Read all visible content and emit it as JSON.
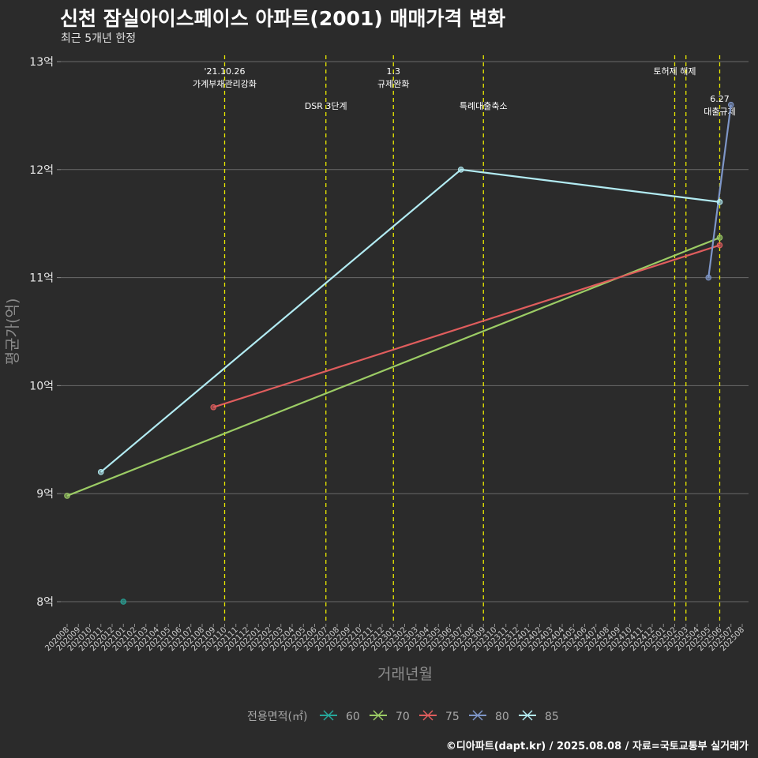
{
  "title": "신천 잠실아이스페이스 아파트(2001) 매매가격 변화",
  "subtitle": "최근 5개년 한정",
  "caption": "©디아파트(dapt.kr) / 2025.08.08 / 자료=국토교통부 실거래가",
  "chart_data": {
    "type": "line",
    "xlabel": "거래년월",
    "ylabel": "평균가(억)",
    "ylim": [
      7.8,
      13.1
    ],
    "yticks": [
      8,
      9,
      10,
      11,
      12,
      13
    ],
    "ytick_labels": [
      "8억",
      "9억",
      "10억",
      "11억",
      "12억",
      "13억"
    ],
    "grid": true,
    "months": [
      "202008",
      "202009",
      "202010",
      "202011",
      "202012",
      "202101",
      "202102",
      "202103",
      "202104",
      "202105",
      "202106",
      "202107",
      "202108",
      "202109",
      "202110",
      "202111",
      "202112",
      "202201",
      "202202",
      "202203",
      "202204",
      "202205",
      "202206",
      "202207",
      "202208",
      "202209",
      "202210",
      "202211",
      "202212",
      "202301",
      "202302",
      "202303",
      "202304",
      "202305",
      "202306",
      "202307",
      "202308",
      "202309",
      "202310",
      "202311",
      "202312",
      "202401",
      "202402",
      "202403",
      "202404",
      "202405",
      "202406",
      "202407",
      "202408",
      "202409",
      "202410",
      "202411",
      "202412",
      "202501",
      "202502",
      "202503",
      "202504",
      "202505",
      "202506",
      "202507",
      "202508"
    ],
    "series": [
      {
        "name": "60",
        "color": "#26a69a",
        "points": [
          {
            "x": "202101",
            "y": 8.0
          }
        ]
      },
      {
        "name": "70",
        "color": "#9ccc65",
        "points": [
          {
            "x": "202008",
            "y": 8.98
          },
          {
            "x": "202506",
            "y": 11.37
          }
        ]
      },
      {
        "name": "75",
        "color": "#e05d5d",
        "points": [
          {
            "x": "202109",
            "y": 9.8
          },
          {
            "x": "202506",
            "y": 11.3
          }
        ]
      },
      {
        "name": "80",
        "color": "#7e96c8",
        "points": [
          {
            "x": "202505",
            "y": 11.0
          },
          {
            "x": "202507",
            "y": 12.6
          }
        ]
      },
      {
        "name": "85",
        "color": "#b2ebf2",
        "points": [
          {
            "x": "202011",
            "y": 9.2
          },
          {
            "x": "202307",
            "y": 12.0
          },
          {
            "x": "202506",
            "y": 11.7
          }
        ]
      }
    ],
    "events": [
      {
        "x": "202110",
        "lines": [
          "'21.10.26",
          "가계부채관리강화"
        ],
        "row": 1
      },
      {
        "x": "202207",
        "lines": [
          "DSR 3단계"
        ],
        "row": 2
      },
      {
        "x": "202301",
        "lines": [
          "1.3",
          "규제완화"
        ],
        "row": 1
      },
      {
        "x": "202309",
        "lines": [
          "특례대출축소"
        ],
        "row": 2
      },
      {
        "x": "202502",
        "lines": [
          "토허제 해제"
        ],
        "row": 1
      },
      {
        "x": "202503",
        "lines": [],
        "row": 1
      },
      {
        "x": "202506",
        "lines": [
          "6.27",
          "대출규제"
        ],
        "row": 3
      }
    ],
    "event_line_color": "#e5e500",
    "legend": {
      "title": "전용면적(㎡)",
      "position": "bottom"
    }
  }
}
